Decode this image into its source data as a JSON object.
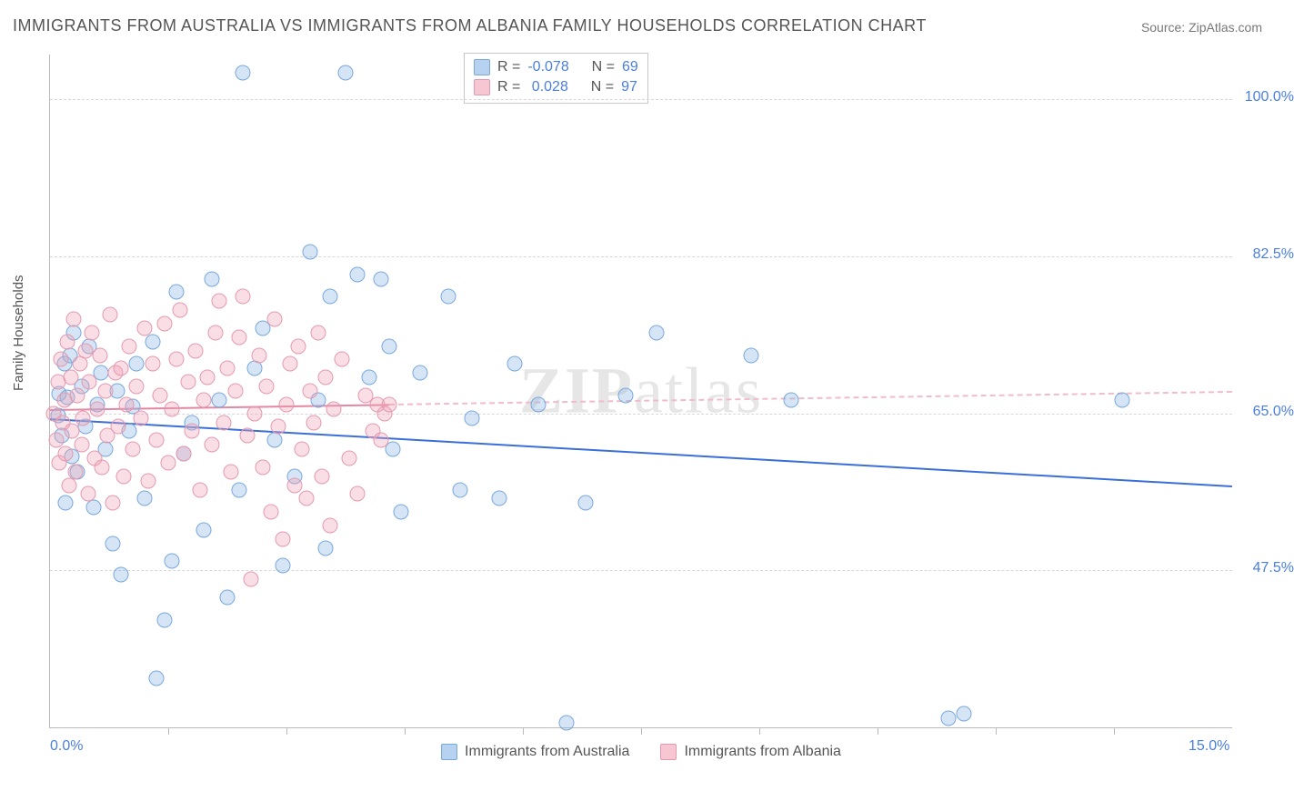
{
  "title": "IMMIGRANTS FROM AUSTRALIA VS IMMIGRANTS FROM ALBANIA FAMILY HOUSEHOLDS CORRELATION CHART",
  "source": "Source: ZipAtlas.com",
  "ylabel": "Family Households",
  "watermark_a": "ZIP",
  "watermark_b": "atlas",
  "chart": {
    "type": "scatter",
    "xlim": [
      0,
      15
    ],
    "ylim": [
      30,
      105
    ],
    "xticks": [
      0,
      15
    ],
    "xtick_labels": [
      "0.0%",
      "15.0%"
    ],
    "xtick_minor": [
      1.5,
      3.0,
      4.5,
      6.0,
      7.5,
      9.0,
      10.5,
      12.0,
      13.5
    ],
    "yticks": [
      47.5,
      65.0,
      82.5,
      100.0
    ],
    "ytick_labels": [
      "47.5%",
      "65.0%",
      "82.5%",
      "100.0%"
    ],
    "grid_color": "#d8d8d8",
    "axis_color": "#bbbbbb",
    "tick_label_color": "#4a7ee0",
    "background_color": "#ffffff",
    "marker_size": 17,
    "series": [
      {
        "key": "australia",
        "label": "Immigrants from Australia",
        "color_fill": "rgba(135,180,230,0.35)",
        "color_stroke": "#7aa8db",
        "R": "-0.078",
        "N": "69",
        "trend": {
          "y_at_x0": 64.5,
          "y_at_x15": 57.0,
          "solid_until_x": 15.0,
          "solid_color": "#3b6fd8",
          "dash_color": "#a8c3ec"
        },
        "points": [
          [
            0.1,
            64.8
          ],
          [
            0.12,
            67.2
          ],
          [
            0.15,
            62.5
          ],
          [
            0.18,
            70.5
          ],
          [
            0.2,
            55.0
          ],
          [
            0.22,
            66.8
          ],
          [
            0.25,
            71.5
          ],
          [
            0.28,
            60.2
          ],
          [
            0.3,
            74.0
          ],
          [
            0.35,
            58.5
          ],
          [
            0.4,
            68.0
          ],
          [
            0.45,
            63.5
          ],
          [
            0.5,
            72.5
          ],
          [
            0.55,
            54.5
          ],
          [
            0.6,
            66.0
          ],
          [
            0.65,
            69.5
          ],
          [
            0.7,
            61.0
          ],
          [
            0.8,
            50.5
          ],
          [
            0.85,
            67.5
          ],
          [
            0.9,
            47.0
          ],
          [
            1.0,
            63.0
          ],
          [
            1.05,
            65.8
          ],
          [
            1.1,
            70.5
          ],
          [
            1.2,
            55.5
          ],
          [
            1.3,
            73.0
          ],
          [
            1.35,
            35.5
          ],
          [
            1.45,
            42.0
          ],
          [
            1.55,
            48.5
          ],
          [
            1.6,
            78.5
          ],
          [
            1.7,
            60.5
          ],
          [
            1.8,
            64.0
          ],
          [
            1.95,
            52.0
          ],
          [
            2.05,
            80.0
          ],
          [
            2.15,
            66.5
          ],
          [
            2.25,
            44.5
          ],
          [
            2.4,
            56.5
          ],
          [
            2.45,
            103.0
          ],
          [
            2.6,
            70.0
          ],
          [
            2.7,
            74.5
          ],
          [
            2.85,
            62.0
          ],
          [
            2.95,
            48.0
          ],
          [
            3.1,
            58.0
          ],
          [
            3.3,
            83.0
          ],
          [
            3.4,
            66.5
          ],
          [
            3.5,
            50.0
          ],
          [
            3.55,
            78.0
          ],
          [
            3.75,
            103.0
          ],
          [
            3.9,
            80.5
          ],
          [
            4.05,
            69.0
          ],
          [
            4.2,
            80.0
          ],
          [
            4.3,
            72.5
          ],
          [
            4.35,
            61.0
          ],
          [
            4.45,
            54.0
          ],
          [
            4.7,
            69.5
          ],
          [
            5.05,
            78.0
          ],
          [
            5.2,
            56.5
          ],
          [
            5.35,
            64.5
          ],
          [
            5.7,
            55.5
          ],
          [
            5.9,
            70.5
          ],
          [
            6.2,
            66.0
          ],
          [
            6.55,
            30.5
          ],
          [
            6.8,
            55.0
          ],
          [
            7.3,
            67.0
          ],
          [
            7.7,
            74.0
          ],
          [
            8.9,
            71.5
          ],
          [
            9.4,
            66.5
          ],
          [
            11.4,
            31.0
          ],
          [
            11.6,
            31.5
          ],
          [
            13.6,
            66.5
          ]
        ]
      },
      {
        "key": "albania",
        "label": "Immigrants from Albania",
        "color_fill": "rgba(240,160,180,0.35)",
        "color_stroke": "#e29ab0",
        "R": "0.028",
        "N": "97",
        "trend": {
          "y_at_x0": 65.5,
          "y_at_x15": 67.5,
          "solid_until_x": 4.3,
          "solid_color": "#e487a3",
          "dash_color": "#f0bccb"
        },
        "points": [
          [
            0.05,
            65.0
          ],
          [
            0.08,
            62.0
          ],
          [
            0.1,
            68.5
          ],
          [
            0.12,
            59.5
          ],
          [
            0.14,
            71.0
          ],
          [
            0.16,
            64.0
          ],
          [
            0.18,
            66.5
          ],
          [
            0.2,
            60.5
          ],
          [
            0.22,
            73.0
          ],
          [
            0.24,
            57.0
          ],
          [
            0.26,
            69.0
          ],
          [
            0.28,
            63.0
          ],
          [
            0.3,
            75.5
          ],
          [
            0.32,
            58.5
          ],
          [
            0.35,
            67.0
          ],
          [
            0.38,
            70.5
          ],
          [
            0.4,
            61.5
          ],
          [
            0.42,
            64.5
          ],
          [
            0.45,
            72.0
          ],
          [
            0.48,
            56.0
          ],
          [
            0.5,
            68.5
          ],
          [
            0.53,
            74.0
          ],
          [
            0.56,
            60.0
          ],
          [
            0.6,
            65.5
          ],
          [
            0.63,
            71.5
          ],
          [
            0.66,
            59.0
          ],
          [
            0.7,
            67.5
          ],
          [
            0.73,
            62.5
          ],
          [
            0.76,
            76.0
          ],
          [
            0.8,
            55.0
          ],
          [
            0.83,
            69.5
          ],
          [
            0.86,
            63.5
          ],
          [
            0.9,
            70.0
          ],
          [
            0.93,
            58.0
          ],
          [
            0.97,
            66.0
          ],
          [
            1.0,
            72.5
          ],
          [
            1.05,
            61.0
          ],
          [
            1.1,
            68.0
          ],
          [
            1.15,
            64.5
          ],
          [
            1.2,
            74.5
          ],
          [
            1.25,
            57.5
          ],
          [
            1.3,
            70.5
          ],
          [
            1.35,
            62.0
          ],
          [
            1.4,
            67.0
          ],
          [
            1.45,
            75.0
          ],
          [
            1.5,
            59.5
          ],
          [
            1.55,
            65.5
          ],
          [
            1.6,
            71.0
          ],
          [
            1.65,
            76.5
          ],
          [
            1.7,
            60.5
          ],
          [
            1.75,
            68.5
          ],
          [
            1.8,
            63.0
          ],
          [
            1.85,
            72.0
          ],
          [
            1.9,
            56.5
          ],
          [
            1.95,
            66.5
          ],
          [
            2.0,
            69.0
          ],
          [
            2.05,
            61.5
          ],
          [
            2.1,
            74.0
          ],
          [
            2.15,
            77.5
          ],
          [
            2.2,
            64.0
          ],
          [
            2.25,
            70.0
          ],
          [
            2.3,
            58.5
          ],
          [
            2.35,
            67.5
          ],
          [
            2.4,
            73.5
          ],
          [
            2.45,
            78.0
          ],
          [
            2.5,
            62.5
          ],
          [
            2.55,
            46.5
          ],
          [
            2.6,
            65.0
          ],
          [
            2.65,
            71.5
          ],
          [
            2.7,
            59.0
          ],
          [
            2.75,
            68.0
          ],
          [
            2.8,
            54.0
          ],
          [
            2.85,
            75.5
          ],
          [
            2.9,
            63.5
          ],
          [
            2.95,
            51.0
          ],
          [
            3.0,
            66.0
          ],
          [
            3.05,
            70.5
          ],
          [
            3.1,
            57.0
          ],
          [
            3.15,
            72.5
          ],
          [
            3.2,
            61.0
          ],
          [
            3.25,
            55.5
          ],
          [
            3.3,
            67.5
          ],
          [
            3.35,
            64.0
          ],
          [
            3.4,
            74.0
          ],
          [
            3.45,
            58.0
          ],
          [
            3.5,
            69.0
          ],
          [
            3.55,
            52.5
          ],
          [
            3.6,
            65.5
          ],
          [
            3.7,
            71.0
          ],
          [
            3.8,
            60.0
          ],
          [
            3.9,
            56.0
          ],
          [
            4.0,
            67.0
          ],
          [
            4.1,
            63.0
          ],
          [
            4.15,
            66.0
          ],
          [
            4.2,
            62.0
          ],
          [
            4.25,
            65.0
          ],
          [
            4.3,
            66.0
          ]
        ]
      }
    ]
  },
  "legend_top": {
    "r_label": "R =",
    "n_label": "N ="
  }
}
